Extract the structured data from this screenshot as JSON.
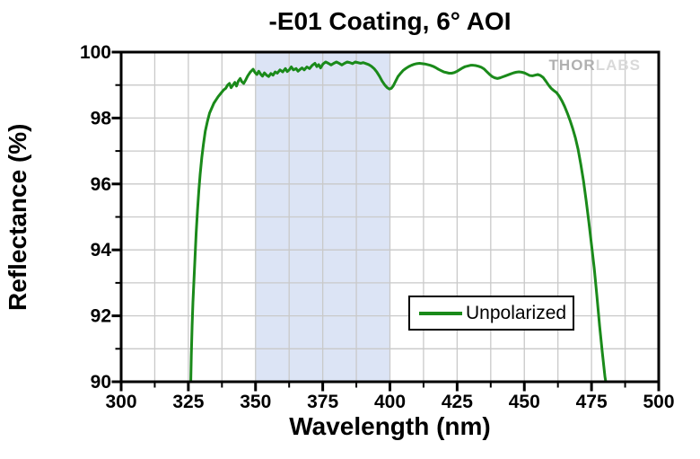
{
  "title": "-E01 Coating, 6° AOI",
  "watermark": {
    "thor": "THOR",
    "labs": "LABS"
  },
  "legend": {
    "label": "Unpolarized"
  },
  "colors": {
    "curve": "#1a8a1a",
    "band": "#dce4f5",
    "grid": "#c9c9c9",
    "frame": "#000000",
    "watermark_dark": "#b0b0b0",
    "watermark_light": "#d9d9d9"
  },
  "chart_data": {
    "type": "line",
    "title": "-E01 Coating, 6° AOI",
    "xlabel": "Wavelength (nm)",
    "ylabel": "Reflectance (%)",
    "xlim": [
      300,
      500
    ],
    "ylim": [
      90,
      100
    ],
    "x_ticks": [
      300,
      325,
      350,
      375,
      400,
      425,
      450,
      475,
      500
    ],
    "y_ticks": [
      90,
      92,
      94,
      96,
      98,
      100
    ],
    "x_minor_step": 12.5,
    "y_minor_step": 1,
    "grid": true,
    "legend_position": "inside-lower-right",
    "shaded_band": {
      "x_start": 350,
      "x_end": 400,
      "color": "#dce4f5"
    },
    "series": [
      {
        "name": "Unpolarized",
        "color": "#1a8a1a",
        "points": [
          [
            325.9,
            90.0
          ],
          [
            326.1,
            90.8
          ],
          [
            326.4,
            91.7
          ],
          [
            326.7,
            92.4
          ],
          [
            327.1,
            93.1
          ],
          [
            327.5,
            93.8
          ],
          [
            327.9,
            94.5
          ],
          [
            328.4,
            95.2
          ],
          [
            328.9,
            95.8
          ],
          [
            329.4,
            96.3
          ],
          [
            330.0,
            96.8
          ],
          [
            330.6,
            97.2
          ],
          [
            331.3,
            97.6
          ],
          [
            332.1,
            97.9
          ],
          [
            332.9,
            98.15
          ],
          [
            333.7,
            98.3
          ],
          [
            334.5,
            98.45
          ],
          [
            335.3,
            98.55
          ],
          [
            336.1,
            98.65
          ],
          [
            337.1,
            98.75
          ],
          [
            338.1,
            98.85
          ],
          [
            338.9,
            98.9
          ],
          [
            339.6,
            99.0
          ],
          [
            340.3,
            99.05
          ],
          [
            340.9,
            98.92
          ],
          [
            341.6,
            99.0
          ],
          [
            342.3,
            99.08
          ],
          [
            342.9,
            98.97
          ],
          [
            343.6,
            99.12
          ],
          [
            344.3,
            99.2
          ],
          [
            344.9,
            99.1
          ],
          [
            345.6,
            99.05
          ],
          [
            346.3,
            99.15
          ],
          [
            347.1,
            99.28
          ],
          [
            348.1,
            99.4
          ],
          [
            349.1,
            99.48
          ],
          [
            349.8,
            99.38
          ],
          [
            350.5,
            99.32
          ],
          [
            351.2,
            99.42
          ],
          [
            351.9,
            99.33
          ],
          [
            352.6,
            99.27
          ],
          [
            353.3,
            99.37
          ],
          [
            354.1,
            99.3
          ],
          [
            354.9,
            99.26
          ],
          [
            355.7,
            99.35
          ],
          [
            356.5,
            99.3
          ],
          [
            357.3,
            99.4
          ],
          [
            358.1,
            99.36
          ],
          [
            359.1,
            99.46
          ],
          [
            360.1,
            99.4
          ],
          [
            361.1,
            99.5
          ],
          [
            361.8,
            99.41
          ],
          [
            362.5,
            99.46
          ],
          [
            363.3,
            99.55
          ],
          [
            364.1,
            99.46
          ],
          [
            365.1,
            99.5
          ],
          [
            365.8,
            99.42
          ],
          [
            366.5,
            99.47
          ],
          [
            367.3,
            99.52
          ],
          [
            368.1,
            99.46
          ],
          [
            369.1,
            99.55
          ],
          [
            370.1,
            99.5
          ],
          [
            371.1,
            99.6
          ],
          [
            372.1,
            99.66
          ],
          [
            372.8,
            99.56
          ],
          [
            373.5,
            99.62
          ],
          [
            374.2,
            99.52
          ],
          [
            375.1,
            99.64
          ],
          [
            376.1,
            99.7
          ],
          [
            377.1,
            99.66
          ],
          [
            378.1,
            99.61
          ],
          [
            379.1,
            99.66
          ],
          [
            380.1,
            99.7
          ],
          [
            381.1,
            99.66
          ],
          [
            382.1,
            99.61
          ],
          [
            383.1,
            99.66
          ],
          [
            384.1,
            99.7
          ],
          [
            385.1,
            99.68
          ],
          [
            386.1,
            99.65
          ],
          [
            387.1,
            99.7
          ],
          [
            388.1,
            99.68
          ],
          [
            389.1,
            99.66
          ],
          [
            390.1,
            99.68
          ],
          [
            391.1,
            99.65
          ],
          [
            392.1,
            99.62
          ],
          [
            393.1,
            99.57
          ],
          [
            394.1,
            99.5
          ],
          [
            395.1,
            99.4
          ],
          [
            396.1,
            99.27
          ],
          [
            397.1,
            99.12
          ],
          [
            398.1,
            99.0
          ],
          [
            399.0,
            98.92
          ],
          [
            399.8,
            98.88
          ],
          [
            400.5,
            98.9
          ],
          [
            401.2,
            98.97
          ],
          [
            402.0,
            99.1
          ],
          [
            403.0,
            99.26
          ],
          [
            404.0,
            99.36
          ],
          [
            405.0,
            99.45
          ],
          [
            406.0,
            99.51
          ],
          [
            407.0,
            99.56
          ],
          [
            408.0,
            99.6
          ],
          [
            409.0,
            99.63
          ],
          [
            410.0,
            99.65
          ],
          [
            411.0,
            99.66
          ],
          [
            412.0,
            99.65
          ],
          [
            413.0,
            99.64
          ],
          [
            414.0,
            99.62
          ],
          [
            415.0,
            99.6
          ],
          [
            416.0,
            99.57
          ],
          [
            417.0,
            99.53
          ],
          [
            418.0,
            99.48
          ],
          [
            419.0,
            99.44
          ],
          [
            420.0,
            99.4
          ],
          [
            421.0,
            99.38
          ],
          [
            422.0,
            99.36
          ],
          [
            423.0,
            99.36
          ],
          [
            424.0,
            99.38
          ],
          [
            425.0,
            99.42
          ],
          [
            426.0,
            99.47
          ],
          [
            427.0,
            99.52
          ],
          [
            428.0,
            99.56
          ],
          [
            429.0,
            99.58
          ],
          [
            430.0,
            99.6
          ],
          [
            431.0,
            99.6
          ],
          [
            432.0,
            99.59
          ],
          [
            433.0,
            99.57
          ],
          [
            434.0,
            99.54
          ],
          [
            435.0,
            99.49
          ],
          [
            436.0,
            99.41
          ],
          [
            437.0,
            99.33
          ],
          [
            438.0,
            99.26
          ],
          [
            439.0,
            99.22
          ],
          [
            440.0,
            99.2
          ],
          [
            441.0,
            99.22
          ],
          [
            442.0,
            99.25
          ],
          [
            443.0,
            99.28
          ],
          [
            444.0,
            99.31
          ],
          [
            445.0,
            99.34
          ],
          [
            446.0,
            99.37
          ],
          [
            447.0,
            99.39
          ],
          [
            448.0,
            99.4
          ],
          [
            449.0,
            99.39
          ],
          [
            450.0,
            99.37
          ],
          [
            451.0,
            99.33
          ],
          [
            452.0,
            99.29
          ],
          [
            453.0,
            99.28
          ],
          [
            454.0,
            99.3
          ],
          [
            455.0,
            99.32
          ],
          [
            456.0,
            99.29
          ],
          [
            457.0,
            99.23
          ],
          [
            458.0,
            99.12
          ],
          [
            459.0,
            99.0
          ],
          [
            460.0,
            98.9
          ],
          [
            461.0,
            98.83
          ],
          [
            462.0,
            98.77
          ],
          [
            463.0,
            98.66
          ],
          [
            464.0,
            98.52
          ],
          [
            465.0,
            98.35
          ],
          [
            466.0,
            98.15
          ],
          [
            467.0,
            97.93
          ],
          [
            468.0,
            97.68
          ],
          [
            469.0,
            97.4
          ],
          [
            470.0,
            97.05
          ],
          [
            471.0,
            96.6
          ],
          [
            472.0,
            96.1
          ],
          [
            473.0,
            95.5
          ],
          [
            474.0,
            94.85
          ],
          [
            475.0,
            94.15
          ],
          [
            476.0,
            93.45
          ],
          [
            477.0,
            92.6
          ],
          [
            478.0,
            91.7
          ],
          [
            479.0,
            90.9
          ],
          [
            480.0,
            90.15
          ],
          [
            480.3,
            90.0
          ]
        ]
      }
    ]
  }
}
